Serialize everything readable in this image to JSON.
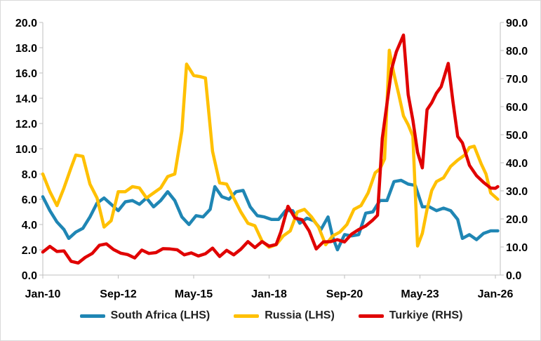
{
  "chart_data": {
    "type": "line",
    "title": "",
    "x_tick_labels": [
      "Jan-10",
      "Sep-12",
      "May-15",
      "Jan-18",
      "Sep-20",
      "May-23",
      "Jan-26"
    ],
    "x_range": [
      "2010-01",
      "2026-01"
    ],
    "y_left": {
      "ticks": [
        "0.0",
        "2.0",
        "4.0",
        "6.0",
        "8.0",
        "10.0",
        "12.0",
        "14.0",
        "16.0",
        "18.0",
        "20.0"
      ],
      "range": [
        0,
        20
      ]
    },
    "y_right": {
      "ticks": [
        "0.0",
        "10.0",
        "20.0",
        "30.0",
        "40.0",
        "50.0",
        "60.0",
        "70.0",
        "80.0",
        "90.0"
      ],
      "range": [
        0,
        90
      ]
    },
    "grid": false,
    "legend_position": "bottom",
    "series": [
      {
        "name": "South Africa (LHS)",
        "axis": "left",
        "color": "#1f86b4",
        "points": [
          [
            "2010-01",
            6.2
          ],
          [
            "2010-04",
            5.1
          ],
          [
            "2010-07",
            4.2
          ],
          [
            "2010-10",
            3.6
          ],
          [
            "2010-12",
            2.9
          ],
          [
            "2011-03",
            3.4
          ],
          [
            "2011-06",
            3.7
          ],
          [
            "2011-09",
            4.6
          ],
          [
            "2011-12",
            5.7
          ],
          [
            "2012-03",
            6.1
          ],
          [
            "2012-06",
            5.6
          ],
          [
            "2012-09",
            5.1
          ],
          [
            "2012-12",
            5.8
          ],
          [
            "2013-03",
            5.9
          ],
          [
            "2013-06",
            5.6
          ],
          [
            "2013-09",
            6.1
          ],
          [
            "2013-12",
            5.4
          ],
          [
            "2014-03",
            5.9
          ],
          [
            "2014-06",
            6.6
          ],
          [
            "2014-09",
            5.9
          ],
          [
            "2014-12",
            4.6
          ],
          [
            "2015-03",
            4.0
          ],
          [
            "2015-06",
            4.7
          ],
          [
            "2015-09",
            4.6
          ],
          [
            "2015-12",
            5.2
          ],
          [
            "2016-02",
            7.0
          ],
          [
            "2016-05",
            6.2
          ],
          [
            "2016-08",
            6.0
          ],
          [
            "2016-11",
            6.6
          ],
          [
            "2017-02",
            6.7
          ],
          [
            "2017-05",
            5.4
          ],
          [
            "2017-08",
            4.7
          ],
          [
            "2017-11",
            4.6
          ],
          [
            "2018-02",
            4.4
          ],
          [
            "2018-05",
            4.4
          ],
          [
            "2018-08",
            5.1
          ],
          [
            "2018-11",
            5.1
          ],
          [
            "2019-02",
            4.1
          ],
          [
            "2019-05",
            4.5
          ],
          [
            "2019-08",
            4.3
          ],
          [
            "2019-11",
            3.6
          ],
          [
            "2020-02",
            4.6
          ],
          [
            "2020-04",
            3.0
          ],
          [
            "2020-06",
            2.0
          ],
          [
            "2020-09",
            3.2
          ],
          [
            "2020-12",
            3.1
          ],
          [
            "2021-03",
            3.2
          ],
          [
            "2021-06",
            4.9
          ],
          [
            "2021-09",
            5.0
          ],
          [
            "2021-12",
            5.9
          ],
          [
            "2022-03",
            5.9
          ],
          [
            "2022-06",
            7.4
          ],
          [
            "2022-09",
            7.5
          ],
          [
            "2022-12",
            7.2
          ],
          [
            "2023-03",
            7.1
          ],
          [
            "2023-06",
            5.4
          ],
          [
            "2023-09",
            5.4
          ],
          [
            "2023-12",
            5.1
          ],
          [
            "2024-03",
            5.3
          ],
          [
            "2024-06",
            5.1
          ],
          [
            "2024-09",
            4.4
          ],
          [
            "2024-11",
            2.9
          ],
          [
            "2025-02",
            3.2
          ],
          [
            "2025-05",
            2.8
          ],
          [
            "2025-08",
            3.3
          ],
          [
            "2025-11",
            3.5
          ],
          [
            "2026-02",
            3.5
          ]
        ]
      },
      {
        "name": "Russia (LHS)",
        "axis": "left",
        "color": "#ffc000",
        "points": [
          [
            "2010-01",
            8.0
          ],
          [
            "2010-04",
            6.6
          ],
          [
            "2010-07",
            5.5
          ],
          [
            "2010-10",
            6.9
          ],
          [
            "2011-01",
            8.5
          ],
          [
            "2011-03",
            9.5
          ],
          [
            "2011-06",
            9.4
          ],
          [
            "2011-09",
            7.2
          ],
          [
            "2011-12",
            6.1
          ],
          [
            "2012-03",
            3.8
          ],
          [
            "2012-06",
            4.3
          ],
          [
            "2012-09",
            6.6
          ],
          [
            "2012-12",
            6.6
          ],
          [
            "2013-03",
            7.0
          ],
          [
            "2013-06",
            6.9
          ],
          [
            "2013-09",
            6.1
          ],
          [
            "2013-12",
            6.5
          ],
          [
            "2014-03",
            6.9
          ],
          [
            "2014-06",
            7.8
          ],
          [
            "2014-09",
            8.0
          ],
          [
            "2014-12",
            11.4
          ],
          [
            "2015-02",
            16.7
          ],
          [
            "2015-05",
            15.8
          ],
          [
            "2015-08",
            15.7
          ],
          [
            "2015-10",
            15.6
          ],
          [
            "2016-01",
            9.8
          ],
          [
            "2016-04",
            7.3
          ],
          [
            "2016-07",
            7.2
          ],
          [
            "2016-10",
            6.1
          ],
          [
            "2017-01",
            5.0
          ],
          [
            "2017-04",
            4.1
          ],
          [
            "2017-07",
            3.9
          ],
          [
            "2017-10",
            2.7
          ],
          [
            "2018-01",
            2.2
          ],
          [
            "2018-04",
            2.4
          ],
          [
            "2018-07",
            3.1
          ],
          [
            "2018-10",
            3.5
          ],
          [
            "2019-01",
            5.0
          ],
          [
            "2019-04",
            5.2
          ],
          [
            "2019-07",
            4.6
          ],
          [
            "2019-10",
            3.8
          ],
          [
            "2020-01",
            2.4
          ],
          [
            "2020-04",
            3.1
          ],
          [
            "2020-07",
            3.4
          ],
          [
            "2020-10",
            4.0
          ],
          [
            "2021-01",
            5.2
          ],
          [
            "2021-04",
            5.5
          ],
          [
            "2021-07",
            6.5
          ],
          [
            "2021-10",
            8.1
          ],
          [
            "2021-12",
            8.4
          ],
          [
            "2022-02",
            9.2
          ],
          [
            "2022-04",
            17.8
          ],
          [
            "2022-06",
            15.9
          ],
          [
            "2022-08",
            14.3
          ],
          [
            "2022-10",
            12.6
          ],
          [
            "2022-12",
            11.9
          ],
          [
            "2023-02",
            11.0
          ],
          [
            "2023-04",
            2.3
          ],
          [
            "2023-06",
            3.3
          ],
          [
            "2023-08",
            5.2
          ],
          [
            "2023-10",
            6.7
          ],
          [
            "2023-12",
            7.4
          ],
          [
            "2024-03",
            7.7
          ],
          [
            "2024-06",
            8.6
          ],
          [
            "2024-09",
            9.1
          ],
          [
            "2024-12",
            9.5
          ],
          [
            "2025-02",
            10.1
          ],
          [
            "2025-04",
            10.2
          ],
          [
            "2025-07",
            8.8
          ],
          [
            "2025-09",
            8.0
          ],
          [
            "2025-11",
            6.5
          ],
          [
            "2026-02",
            6.0
          ]
        ]
      },
      {
        "name": "Turkiye (RHS)",
        "axis": "right",
        "color": "#e00000",
        "points": [
          [
            "2010-01",
            8.2
          ],
          [
            "2010-04",
            10.2
          ],
          [
            "2010-07",
            8.4
          ],
          [
            "2010-10",
            8.6
          ],
          [
            "2011-01",
            4.9
          ],
          [
            "2011-04",
            4.3
          ],
          [
            "2011-07",
            6.3
          ],
          [
            "2011-10",
            7.7
          ],
          [
            "2012-01",
            10.6
          ],
          [
            "2012-04",
            11.1
          ],
          [
            "2012-07",
            9.1
          ],
          [
            "2012-10",
            7.8
          ],
          [
            "2013-01",
            7.3
          ],
          [
            "2013-04",
            6.1
          ],
          [
            "2013-07",
            8.9
          ],
          [
            "2013-10",
            7.7
          ],
          [
            "2014-01",
            8.0
          ],
          [
            "2014-04",
            9.4
          ],
          [
            "2014-07",
            9.3
          ],
          [
            "2014-10",
            9.0
          ],
          [
            "2015-01",
            7.2
          ],
          [
            "2015-04",
            7.9
          ],
          [
            "2015-07",
            6.8
          ],
          [
            "2015-10",
            7.6
          ],
          [
            "2016-01",
            9.6
          ],
          [
            "2016-04",
            6.6
          ],
          [
            "2016-07",
            8.8
          ],
          [
            "2016-10",
            7.2
          ],
          [
            "2017-01",
            9.2
          ],
          [
            "2017-04",
            11.9
          ],
          [
            "2017-07",
            9.8
          ],
          [
            "2017-10",
            11.9
          ],
          [
            "2018-01",
            10.3
          ],
          [
            "2018-04",
            10.9
          ],
          [
            "2018-06",
            15.4
          ],
          [
            "2018-09",
            24.5
          ],
          [
            "2018-12",
            20.3
          ],
          [
            "2019-03",
            19.7
          ],
          [
            "2019-06",
            15.7
          ],
          [
            "2019-09",
            9.3
          ],
          [
            "2019-12",
            11.8
          ],
          [
            "2020-03",
            11.9
          ],
          [
            "2020-06",
            12.6
          ],
          [
            "2020-09",
            11.8
          ],
          [
            "2020-12",
            14.6
          ],
          [
            "2021-03",
            16.2
          ],
          [
            "2021-06",
            17.5
          ],
          [
            "2021-09",
            19.6
          ],
          [
            "2021-11",
            21.3
          ],
          [
            "2022-01",
            48.7
          ],
          [
            "2022-03",
            61.1
          ],
          [
            "2022-05",
            73.5
          ],
          [
            "2022-07",
            79.6
          ],
          [
            "2022-09",
            83.5
          ],
          [
            "2022-10",
            85.5
          ],
          [
            "2022-12",
            64.3
          ],
          [
            "2023-02",
            55.2
          ],
          [
            "2023-04",
            43.7
          ],
          [
            "2023-06",
            38.2
          ],
          [
            "2023-08",
            58.9
          ],
          [
            "2023-10",
            61.4
          ],
          [
            "2023-12",
            64.8
          ],
          [
            "2024-02",
            67.1
          ],
          [
            "2024-05",
            75.4
          ],
          [
            "2024-07",
            61.8
          ],
          [
            "2024-09",
            49.4
          ],
          [
            "2024-11",
            47.1
          ],
          [
            "2025-02",
            39.1
          ],
          [
            "2025-05",
            35.4
          ],
          [
            "2025-08",
            33.0
          ],
          [
            "2025-11",
            31.0
          ],
          [
            "2026-01",
            30.9
          ],
          [
            "2026-02",
            31.5
          ]
        ]
      }
    ]
  }
}
